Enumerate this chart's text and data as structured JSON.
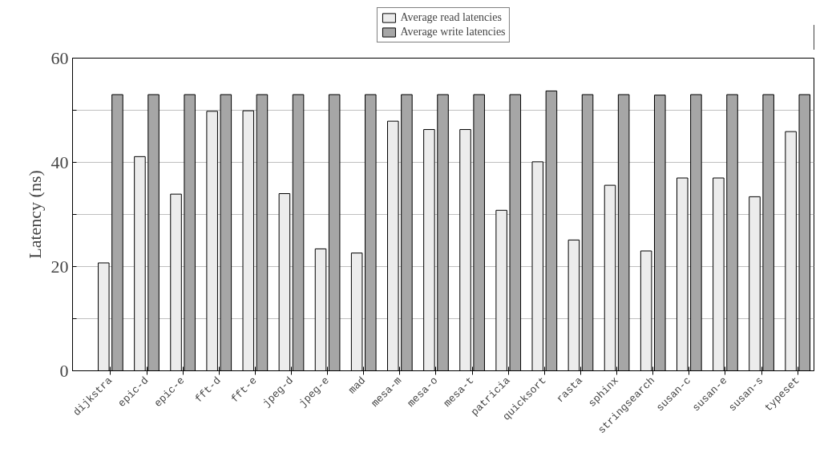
{
  "chart_data": {
    "type": "bar",
    "ylabel": "Latency (ns)",
    "categories": [
      "dijkstra",
      "epic-d",
      "epic-e",
      "fft-d",
      "fft-e",
      "jpeg-d",
      "jpeg-e",
      "mad",
      "mesa-m",
      "mesa-o",
      "mesa-t",
      "patricia",
      "quicksort",
      "rasta",
      "sphinx",
      "stringsearch",
      "susan-c",
      "susan-e",
      "susan-s",
      "typeset"
    ],
    "series": [
      {
        "name": "Average read latencies",
        "color": "#ececec",
        "values": [
          20.7,
          41.1,
          33.9,
          49.8,
          49.9,
          34.0,
          23.4,
          22.6,
          47.9,
          46.3,
          46.3,
          30.8,
          40.1,
          25.1,
          35.6,
          23.0,
          37.0,
          37.0,
          33.4,
          45.9
        ]
      },
      {
        "name": "Average write latencies",
        "color": "#a6a6a6",
        "values": [
          53,
          53,
          53,
          53,
          53,
          53,
          53,
          53,
          53,
          53,
          53,
          53,
          53.7,
          53,
          53,
          52.9,
          53,
          53,
          53,
          53
        ]
      }
    ],
    "ylim": [
      0,
      60
    ],
    "yticks": [
      0,
      {
        "value": 10,
        "label": null
      },
      20,
      {
        "value": 30,
        "label": null
      },
      40,
      {
        "value": 50,
        "label": null
      },
      60
    ],
    "grid": "y",
    "legend": "top"
  }
}
